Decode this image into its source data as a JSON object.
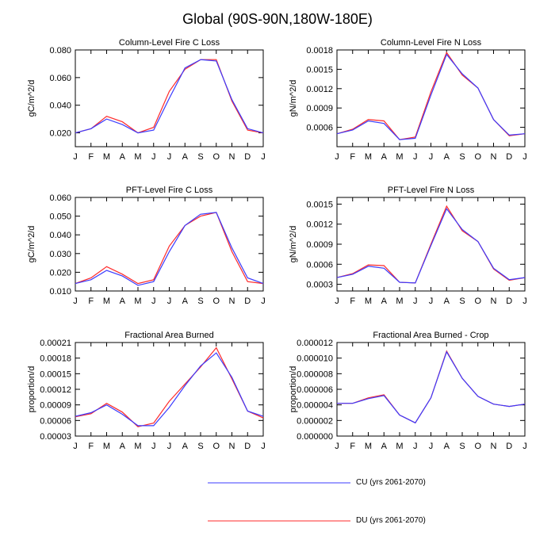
{
  "title": "Global (90S-90N,180W-180E)",
  "series_colors": {
    "CU": "#3b3bff",
    "DU": "#ff2a2a"
  },
  "legend": [
    {
      "name": "CU",
      "label": "CU (yrs 2061-2070)",
      "color": "#3b3bff"
    },
    {
      "name": "DU",
      "label": "DU (yrs 2061-2070)",
      "color": "#ff2a2a"
    }
  ],
  "chart_data": [
    {
      "type": "line",
      "title": "Column-Level Fire C Loss",
      "ylabel": "gC/m^2/d",
      "categories": [
        "J",
        "F",
        "M",
        "A",
        "M",
        "J",
        "J",
        "A",
        "S",
        "O",
        "N",
        "D",
        "J"
      ],
      "ylim": [
        0.01,
        0.08
      ],
      "yticks": [
        0.02,
        0.04,
        0.06,
        0.08
      ],
      "ytick_labels": [
        "0.020",
        "0.040",
        "0.060",
        "0.080"
      ],
      "series": [
        {
          "name": "CU",
          "values": [
            0.02,
            0.023,
            0.03,
            0.026,
            0.02,
            0.022,
            0.045,
            0.067,
            0.073,
            0.072,
            0.044,
            0.023,
            0.02
          ]
        },
        {
          "name": "DU",
          "values": [
            0.02,
            0.023,
            0.032,
            0.028,
            0.02,
            0.024,
            0.05,
            0.066,
            0.073,
            0.073,
            0.043,
            0.022,
            0.02
          ]
        }
      ]
    },
    {
      "type": "line",
      "title": "Column-Level Fire N Loss",
      "ylabel": "gN/m^2/d",
      "categories": [
        "J",
        "F",
        "M",
        "A",
        "M",
        "J",
        "J",
        "A",
        "S",
        "O",
        "N",
        "D",
        "J"
      ],
      "ylim": [
        0.0003,
        0.0018
      ],
      "yticks": [
        0.0006,
        0.0009,
        0.0012,
        0.0015,
        0.0018
      ],
      "ytick_labels": [
        "0.0006",
        "0.0009",
        "0.0012",
        "0.0015",
        "0.0018"
      ],
      "series": [
        {
          "name": "CU",
          "values": [
            0.0005,
            0.00056,
            0.0007,
            0.00066,
            0.00041,
            0.00043,
            0.0011,
            0.00173,
            0.00143,
            0.00121,
            0.00072,
            0.00048,
            0.0005
          ]
        },
        {
          "name": "DU",
          "values": [
            0.0005,
            0.00057,
            0.00072,
            0.0007,
            0.00041,
            0.00045,
            0.00115,
            0.00176,
            0.00141,
            0.00121,
            0.00072,
            0.00047,
            0.0005
          ]
        }
      ]
    },
    {
      "type": "line",
      "title": "PFT-Level Fire C Loss",
      "ylabel": "gC/m^2/d",
      "categories": [
        "J",
        "F",
        "M",
        "A",
        "M",
        "J",
        "J",
        "A",
        "S",
        "O",
        "N",
        "D",
        "J"
      ],
      "ylim": [
        0.01,
        0.06
      ],
      "yticks": [
        0.01,
        0.02,
        0.03,
        0.04,
        0.05,
        0.06
      ],
      "ytick_labels": [
        "0.010",
        "0.020",
        "0.030",
        "0.040",
        "0.050",
        "0.060"
      ],
      "series": [
        {
          "name": "CU",
          "values": [
            0.014,
            0.016,
            0.021,
            0.018,
            0.013,
            0.015,
            0.031,
            0.045,
            0.051,
            0.052,
            0.033,
            0.017,
            0.014
          ]
        },
        {
          "name": "DU",
          "values": [
            0.014,
            0.017,
            0.023,
            0.019,
            0.014,
            0.016,
            0.034,
            0.045,
            0.05,
            0.052,
            0.031,
            0.015,
            0.014
          ]
        }
      ]
    },
    {
      "type": "line",
      "title": "PFT-Level Fire N Loss",
      "ylabel": "gN/m^2/d",
      "categories": [
        "J",
        "F",
        "M",
        "A",
        "M",
        "J",
        "J",
        "A",
        "S",
        "O",
        "N",
        "D",
        "J"
      ],
      "ylim": [
        0.0002,
        0.0016
      ],
      "yticks": [
        0.0003,
        0.0006,
        0.0009,
        0.0012,
        0.0015
      ],
      "ytick_labels": [
        "0.0003",
        "0.0006",
        "0.0009",
        "0.0012",
        "0.0015"
      ],
      "series": [
        {
          "name": "CU",
          "values": [
            0.0004,
            0.00045,
            0.00057,
            0.00054,
            0.00033,
            0.00032,
            0.00088,
            0.00143,
            0.00112,
            0.00094,
            0.00054,
            0.00037,
            0.0004
          ]
        },
        {
          "name": "DU",
          "values": [
            0.0004,
            0.00046,
            0.00059,
            0.00058,
            0.00033,
            0.00032,
            0.0009,
            0.00147,
            0.0011,
            0.00094,
            0.00053,
            0.00036,
            0.0004
          ]
        }
      ]
    },
    {
      "type": "line",
      "title": "Fractional Area Burned",
      "ylabel": "proportion/d",
      "categories": [
        "J",
        "F",
        "M",
        "A",
        "M",
        "J",
        "J",
        "A",
        "S",
        "O",
        "N",
        "D",
        "J"
      ],
      "ylim": [
        3e-05,
        0.00021
      ],
      "yticks": [
        3e-05,
        6e-05,
        9e-05,
        0.00012,
        0.00015,
        0.00018,
        0.00021
      ],
      "ytick_labels": [
        "0.00003",
        "0.00006",
        "0.00009",
        "0.00012",
        "0.00015",
        "0.00018",
        "0.00021"
      ],
      "series": [
        {
          "name": "CU",
          "values": [
            6.8e-05,
            7.5e-05,
            9e-05,
            7.2e-05,
            5e-05,
            5e-05,
            8.5e-05,
            0.000127,
            0.000165,
            0.00019,
            0.000143,
            7.8e-05,
            6.8e-05
          ]
        },
        {
          "name": "DU",
          "values": [
            6.7e-05,
            7.3e-05,
            9.3e-05,
            7.6e-05,
            4.8e-05,
            5.5e-05,
            9.7e-05,
            0.00013,
            0.000163,
            0.0002,
            0.00014,
            7.8e-05,
            6.5e-05
          ]
        }
      ]
    },
    {
      "type": "line",
      "title": "Fractional Area Burned - Crop",
      "ylabel": "proportion/d",
      "categories": [
        "J",
        "F",
        "M",
        "A",
        "M",
        "J",
        "J",
        "A",
        "S",
        "O",
        "N",
        "D",
        "J"
      ],
      "ylim": [
        0.0,
        1.2e-05
      ],
      "yticks": [
        0.0,
        2e-06,
        4e-06,
        6e-06,
        8e-06,
        1e-05,
        1.2e-05
      ],
      "ytick_labels": [
        "0.000000",
        "0.000002",
        "0.000004",
        "0.000006",
        "0.000008",
        "0.000010",
        "0.000012"
      ],
      "series": [
        {
          "name": "CU",
          "values": [
            4.2e-06,
            4.2e-06,
            4.8e-06,
            5.2e-06,
            2.7e-06,
            1.7e-06,
            4.9e-06,
            1.08e-05,
            7.4e-06,
            5.1e-06,
            4.1e-06,
            3.8e-06,
            4.1e-06
          ]
        },
        {
          "name": "DU",
          "values": [
            4.2e-06,
            4.2e-06,
            4.9e-06,
            5.3e-06,
            2.7e-06,
            1.7e-06,
            4.9e-06,
            1.09e-05,
            7.4e-06,
            5.1e-06,
            4.1e-06,
            3.8e-06,
            4.1e-06
          ]
        }
      ]
    }
  ]
}
